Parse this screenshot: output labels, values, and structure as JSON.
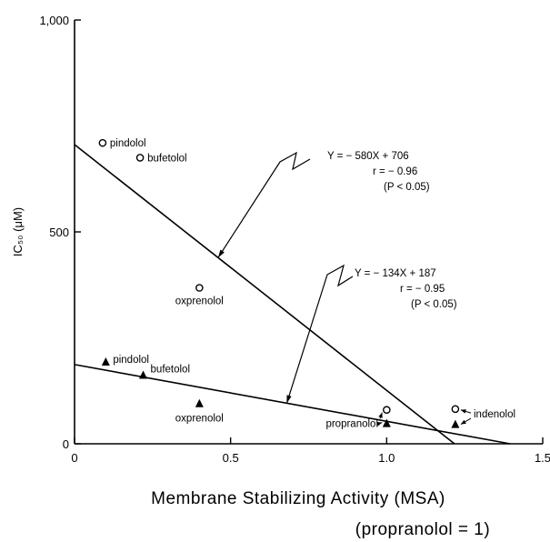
{
  "chart_data": {
    "type": "scatter",
    "title": "",
    "xlabel": "Membrane Stabilizing Activity (MSA)",
    "xlabel_note": "(propranolol = 1)",
    "ylabel": "IC₅₀ (μM)",
    "xlim": [
      0,
      1.5
    ],
    "ylim": [
      0,
      1000
    ],
    "x_ticks": [
      "0",
      "0.5",
      "1.0",
      "1.5"
    ],
    "y_ticks": [
      "0",
      "500",
      "1,000"
    ],
    "grid": false,
    "series": [
      {
        "marker": "open-circle",
        "points": [
          {
            "label": "pindolol",
            "x": 0.09,
            "y": 710
          },
          {
            "label": "bufetolol",
            "x": 0.21,
            "y": 675
          },
          {
            "label": "oxprenolol",
            "x": 0.4,
            "y": 368
          },
          {
            "label": "propranolol",
            "x": 1.0,
            "y": 80
          },
          {
            "label": "indenolol",
            "x": 1.22,
            "y": 82
          }
        ]
      },
      {
        "marker": "filled-triangle",
        "points": [
          {
            "label": "pindolol",
            "x": 0.1,
            "y": 193
          },
          {
            "label": "bufetolol",
            "x": 0.22,
            "y": 162
          },
          {
            "label": "oxprenolol",
            "x": 0.4,
            "y": 95
          },
          {
            "label": "propranolol",
            "x": 1.0,
            "y": 48
          },
          {
            "label": "indenolol",
            "x": 1.22,
            "y": 46
          }
        ]
      }
    ],
    "regression_lines": [
      {
        "slope": -580,
        "intercept": 706,
        "equation": "Y = − 580X + 706",
        "r": "r = − 0.96",
        "p": "(P < 0.05)"
      },
      {
        "slope": -134,
        "intercept": 187,
        "equation": "Y = − 134X + 187",
        "r": "r = − 0.95",
        "p": "(P < 0.05)"
      }
    ]
  }
}
